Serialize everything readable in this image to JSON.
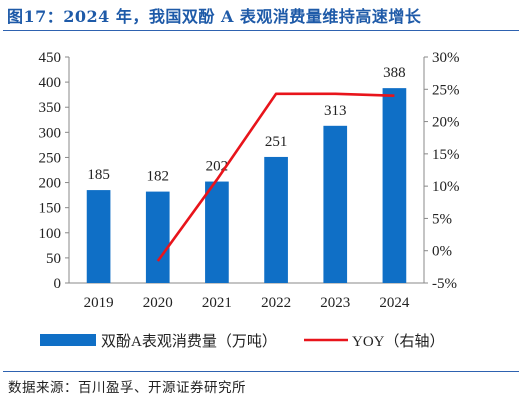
{
  "title": "图17：2024 年，我国双酚 A 表观消费量维持高速增长",
  "source": "数据来源：百川盈孚、开源证券研究所",
  "colors": {
    "accent": "#1e5aa8",
    "bar": "#0f6fc6",
    "line": "#e8141b",
    "axis": "#888888"
  },
  "chart_data": {
    "type": "bar",
    "categories": [
      "2019",
      "2020",
      "2021",
      "2022",
      "2023",
      "2024"
    ],
    "series": [
      {
        "name": "双酚A表观消费量（万吨）",
        "type": "bar",
        "axis": "left",
        "values": [
          185,
          182,
          202,
          251,
          313,
          388
        ],
        "labels": [
          "185",
          "182",
          "202",
          "251",
          "313",
          "388"
        ]
      },
      {
        "name": "YOY（右轴）",
        "type": "line",
        "axis": "right",
        "values": [
          null,
          -1.6,
          11.0,
          24.3,
          24.3,
          24.0
        ]
      }
    ],
    "y_left": {
      "min": 0,
      "max": 450,
      "ticks": [
        0,
        50,
        100,
        150,
        200,
        250,
        300,
        350,
        400,
        450
      ],
      "tick_labels": [
        "0",
        "50",
        "100",
        "150",
        "200",
        "250",
        "300",
        "350",
        "400",
        "450"
      ]
    },
    "y_right": {
      "min": -5,
      "max": 30,
      "ticks": [
        -5,
        0,
        5,
        10,
        15,
        20,
        25,
        30
      ],
      "tick_labels": [
        "-5%",
        "0%",
        "5%",
        "10%",
        "15%",
        "20%",
        "25%",
        "30%"
      ]
    },
    "grid": false,
    "legend": "bottom"
  }
}
